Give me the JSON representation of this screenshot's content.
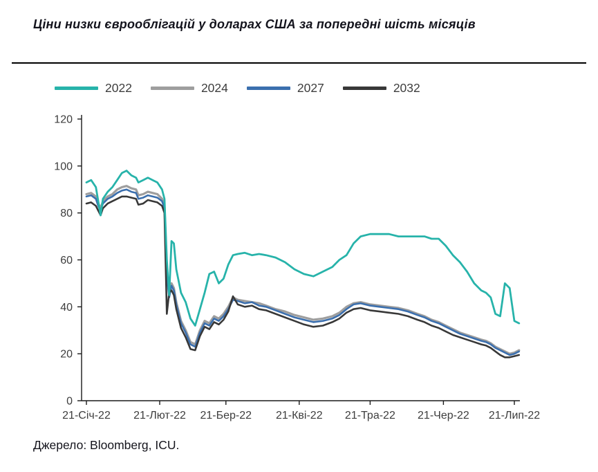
{
  "page": {
    "title": "Ціни низки єврооблігацій у доларах США за попередні шість місяців",
    "source": "Джерело: Bloomberg, ICU."
  },
  "legend": {
    "items": [
      {
        "label": "2022",
        "color": "#27b3aa"
      },
      {
        "label": "2024",
        "color": "#9e9e9e"
      },
      {
        "label": "2027",
        "color": "#3b6fae"
      },
      {
        "label": "2032",
        "color": "#383838"
      }
    ]
  },
  "chart_data": {
    "type": "line",
    "title": "Ціни низки єврооблігацій у доларах США за попередні шість місяців",
    "source": "Джерело: Bloomberg, ICU.",
    "xlabel": "",
    "ylabel": "",
    "ylim": [
      0,
      120
    ],
    "y_ticks": [
      0,
      20,
      40,
      60,
      80,
      100,
      120
    ],
    "grid": false,
    "legend_position": "top-left",
    "x_unit": "days since 21-Jan-2022",
    "x_ticks": [
      {
        "label": "21-Січ-22",
        "day": 0
      },
      {
        "label": "21-Лют-22",
        "day": 31
      },
      {
        "label": "21-Бер-22",
        "day": 59
      },
      {
        "label": "21-Кві-22",
        "day": 90
      },
      {
        "label": "21-Тра-22",
        "day": 120
      },
      {
        "label": "21-Чер-22",
        "day": 151
      },
      {
        "label": "21-Лип-22",
        "day": 181
      }
    ],
    "x": [
      0,
      2,
      4,
      5,
      6,
      7,
      9,
      11,
      13,
      15,
      17,
      19,
      21,
      22,
      24,
      26,
      28,
      30,
      32,
      33,
      34,
      35,
      36,
      37,
      38,
      40,
      42,
      44,
      46,
      48,
      50,
      52,
      54,
      56,
      58,
      60,
      62,
      64,
      67,
      70,
      73,
      76,
      80,
      84,
      88,
      92,
      96,
      100,
      104,
      107,
      110,
      113,
      116,
      120,
      124,
      128,
      132,
      136,
      140,
      143,
      146,
      149,
      152,
      155,
      158,
      161,
      164,
      167,
      169,
      171,
      173,
      175,
      177,
      179,
      181,
      183
    ],
    "series": [
      {
        "name": "2022",
        "color": "#27b3aa",
        "values": [
          93,
          94,
          91,
          85,
          79,
          86,
          89,
          91,
          94,
          97,
          98,
          96,
          95,
          93,
          94,
          95,
          94,
          93,
          90,
          86,
          60,
          45,
          68,
          67,
          56,
          46,
          42,
          35,
          32,
          39,
          46,
          54,
          55,
          50,
          52,
          58,
          62,
          62.5,
          63,
          62,
          62.5,
          62,
          61,
          59,
          56,
          54,
          53,
          55,
          57,
          60,
          62,
          67,
          70,
          71,
          71,
          71,
          70,
          70,
          70,
          70,
          69,
          69,
          66,
          62,
          59,
          55,
          50,
          47,
          46,
          44,
          37,
          36,
          50,
          48,
          34,
          33
        ]
      },
      {
        "name": "2024",
        "color": "#9e9e9e",
        "values": [
          88,
          88.5,
          87,
          84,
          82,
          85,
          87,
          88,
          90,
          91,
          91.5,
          90.5,
          90,
          87.5,
          88,
          89,
          88.5,
          88,
          86,
          83,
          55,
          46,
          50,
          48,
          42,
          34,
          30,
          25,
          24,
          30,
          34,
          33,
          36,
          35,
          37,
          40,
          44,
          43,
          42.5,
          42,
          41.5,
          40.5,
          39,
          38,
          36.5,
          35.5,
          34.5,
          35,
          36,
          37.5,
          40,
          41.5,
          42,
          41,
          40.5,
          40,
          39.5,
          38.5,
          37,
          36,
          34.5,
          33.5,
          32,
          30.5,
          29,
          28,
          27,
          26,
          25.5,
          24.5,
          23,
          22,
          21,
          20,
          20.5,
          21.5
        ]
      },
      {
        "name": "2027",
        "color": "#3b6fae",
        "values": [
          87,
          87.5,
          86,
          83,
          81,
          84,
          86,
          87,
          88.5,
          89.5,
          90,
          89,
          88.5,
          86,
          86.5,
          87.5,
          87,
          86.5,
          85,
          82,
          53,
          44,
          49,
          47,
          41,
          33,
          29,
          24,
          23,
          29,
          33,
          32,
          35,
          34,
          36,
          39,
          43,
          42.5,
          41.5,
          42,
          40.5,
          40,
          38.5,
          37,
          35.5,
          34.5,
          33.5,
          34,
          35,
          36.5,
          39,
          41,
          41.5,
          40.5,
          40,
          39.5,
          39,
          38,
          36.5,
          35.5,
          34,
          33,
          31.5,
          30,
          28.5,
          27.5,
          26.5,
          25.5,
          25,
          24,
          22.5,
          21.5,
          20.5,
          19.5,
          20,
          21
        ]
      },
      {
        "name": "2032",
        "color": "#383838",
        "values": [
          84,
          84.5,
          83,
          81,
          79,
          82,
          84,
          85,
          86,
          87,
          87,
          86.5,
          86,
          83.5,
          84,
          85.5,
          85,
          84.5,
          83,
          80,
          37,
          46,
          47,
          45,
          39,
          31,
          27,
          22,
          21.5,
          27.5,
          31.5,
          30.5,
          33.5,
          32.5,
          34.5,
          38,
          44.5,
          41,
          40,
          40.5,
          39,
          38.5,
          37,
          35.5,
          34,
          32.5,
          31.5,
          32,
          33.5,
          35,
          37.5,
          39,
          39.5,
          38.5,
          38,
          37.5,
          37,
          36,
          34.5,
          33.5,
          32,
          31,
          29.5,
          28,
          27,
          26,
          25,
          24,
          23.5,
          22.5,
          21,
          19.5,
          18.5,
          18.5,
          19,
          19.5
        ]
      }
    ]
  }
}
